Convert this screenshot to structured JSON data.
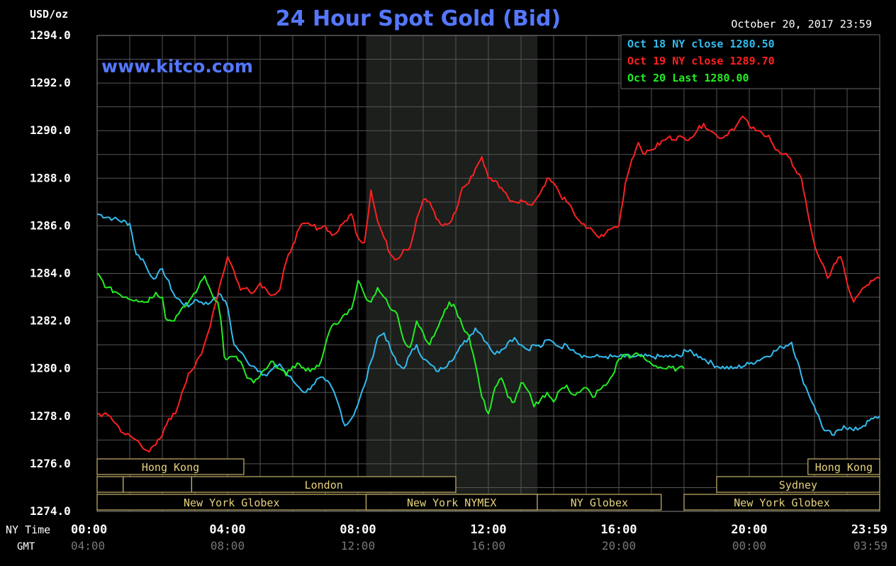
{
  "header": {
    "unit": "USD/oz",
    "title": "24 Hour Spot Gold (Bid)",
    "timestamp": "October 20, 2017 23:59",
    "watermark": "www.kitco.com"
  },
  "axis_labels": {
    "ny": "NY Time",
    "gmt": "GMT"
  },
  "legend": [
    {
      "text": "Oct 18 NY close 1280.50",
      "color": "#33bbee"
    },
    {
      "text": "Oct 19 NY close 1289.70",
      "color": "#ff2020"
    },
    {
      "text": "Oct 20 Last 1280.00",
      "color": "#22ee22"
    }
  ],
  "sessions": [
    {
      "label": "Hong Kong",
      "start": 0,
      "end": 4.5,
      "row": 0
    },
    {
      "label": "Hong Kong",
      "start": 21.8,
      "end": 24,
      "row": 0
    },
    {
      "label": "",
      "start": 0,
      "end": 0.8,
      "row": 1
    },
    {
      "label": "",
      "start": 0.8,
      "end": 2.9,
      "row": 1
    },
    {
      "label": "London",
      "start": 2.9,
      "end": 11.0,
      "row": 1
    },
    {
      "label": "Sydney",
      "start": 19.0,
      "end": 24,
      "row": 1
    },
    {
      "label": "New York Globex",
      "start": 0,
      "end": 8.25,
      "row": 2
    },
    {
      "label": "New York NYMEX",
      "start": 8.25,
      "end": 13.5,
      "row": 2
    },
    {
      "label": "NY Globex",
      "start": 13.5,
      "end": 17.3,
      "row": 2
    },
    {
      "label": "New York Globex",
      "start": 18.0,
      "end": 24,
      "row": 2
    }
  ],
  "chart_data": {
    "type": "line",
    "title": "24 Hour Spot Gold (Bid)",
    "ylabel": "USD/oz",
    "xlabel": "NY Time",
    "ylim": [
      1274.0,
      1294.0
    ],
    "xlim_hours": [
      0,
      24
    ],
    "y_ticks": [
      "1274.0",
      "1276.0",
      "1278.0",
      "1280.0",
      "1282.0",
      "1284.0",
      "1286.0",
      "1288.0",
      "1290.0",
      "1292.0",
      "1294.0"
    ],
    "x_ticks_ny": [
      "00:00",
      "04:00",
      "08:00",
      "12:00",
      "16:00",
      "20:00",
      "23:59"
    ],
    "x_ticks_gmt": [
      "04:00",
      "08:00",
      "12:00",
      "16:00",
      "20:00",
      "00:00",
      "03:59"
    ],
    "grid": true,
    "shaded_hours": [
      8.25,
      13.5
    ],
    "legend_position": "top-right",
    "series": [
      {
        "name": "Oct 18",
        "color": "#33bbee",
        "x": [
          0.0,
          0.5,
          1.0,
          1.2,
          1.4,
          1.6,
          1.8,
          2.0,
          2.4,
          2.8,
          3.0,
          3.2,
          3.4,
          3.6,
          3.8,
          4.0,
          4.2,
          4.4,
          4.6,
          4.8,
          5.0,
          5.2,
          5.4,
          5.6,
          5.8,
          6.0,
          6.2,
          6.4,
          6.6,
          6.8,
          7.0,
          7.2,
          7.4,
          7.6,
          7.8,
          8.0,
          8.2,
          8.4,
          8.6,
          8.8,
          9.0,
          9.2,
          9.4,
          9.6,
          9.8,
          10.0,
          10.2,
          10.4,
          10.6,
          10.8,
          11.0,
          11.2,
          11.4,
          11.6,
          11.8,
          12.0,
          12.2,
          12.4,
          12.6,
          12.8,
          13.0,
          13.2,
          13.4,
          13.6,
          13.8,
          14.0,
          14.2,
          14.4,
          14.6,
          14.8,
          15.0,
          15.2,
          15.4,
          15.6,
          15.8,
          16.0,
          16.5,
          17.0,
          17.5,
          17.9,
          18.0,
          18.5,
          19.0,
          19.5,
          20.0,
          20.5,
          21.0,
          21.3,
          21.6,
          21.8,
          22.0,
          22.3,
          22.6,
          22.9,
          23.2,
          23.5,
          23.8,
          24.0
        ],
        "y": [
          1286.5,
          1286.3,
          1286.1,
          1284.8,
          1284.6,
          1284.0,
          1283.8,
          1284.2,
          1283.0,
          1282.6,
          1282.9,
          1282.8,
          1282.7,
          1283.0,
          1283.1,
          1282.6,
          1281.0,
          1280.7,
          1280.3,
          1280.1,
          1279.9,
          1279.7,
          1280.0,
          1280.2,
          1279.8,
          1279.5,
          1279.2,
          1279.0,
          1279.3,
          1279.6,
          1279.5,
          1279.2,
          1278.5,
          1277.6,
          1277.9,
          1278.5,
          1279.3,
          1280.3,
          1281.3,
          1281.5,
          1280.8,
          1280.2,
          1280.0,
          1280.6,
          1281.0,
          1280.4,
          1280.2,
          1279.9,
          1280.0,
          1280.3,
          1280.6,
          1281.0,
          1281.3,
          1281.7,
          1281.4,
          1281.0,
          1280.6,
          1280.8,
          1281.1,
          1281.3,
          1281.0,
          1280.8,
          1281.0,
          1280.9,
          1281.2,
          1281.1,
          1280.9,
          1281.0,
          1280.8,
          1280.6,
          1280.5,
          1280.5,
          1280.5,
          1280.5,
          1280.5,
          1280.5,
          1280.5,
          1280.5,
          1280.5,
          1280.5,
          1280.8,
          1280.5,
          1280.1,
          1280.0,
          1280.2,
          1280.5,
          1280.9,
          1281.1,
          1279.7,
          1279.0,
          1278.4,
          1277.4,
          1277.2,
          1277.6,
          1277.4,
          1277.6,
          1277.9,
          1278.0
        ]
      },
      {
        "name": "Oct 19",
        "color": "#ff2020",
        "x": [
          0.0,
          0.4,
          0.8,
          1.2,
          1.6,
          1.8,
          2.0,
          2.2,
          2.4,
          2.6,
          2.8,
          3.0,
          3.2,
          3.4,
          3.6,
          3.8,
          4.0,
          4.2,
          4.4,
          4.6,
          4.8,
          5.0,
          5.2,
          5.4,
          5.6,
          5.8,
          6.0,
          6.2,
          6.4,
          6.6,
          6.8,
          7.0,
          7.2,
          7.4,
          7.6,
          7.8,
          8.0,
          8.2,
          8.4,
          8.6,
          8.8,
          9.0,
          9.2,
          9.4,
          9.6,
          9.8,
          10.0,
          10.2,
          10.4,
          10.6,
          10.8,
          11.0,
          11.2,
          11.4,
          11.6,
          11.8,
          12.0,
          12.2,
          12.4,
          12.6,
          12.8,
          13.0,
          13.2,
          13.4,
          13.6,
          13.8,
          14.0,
          14.2,
          14.4,
          14.6,
          14.8,
          15.0,
          15.2,
          15.4,
          15.6,
          15.8,
          16.0,
          16.2,
          16.4,
          16.6,
          16.8,
          17.0,
          17.5,
          18.0,
          18.2,
          18.4,
          18.6,
          18.8,
          19.0,
          19.2,
          19.4,
          19.6,
          19.8,
          20.0,
          20.2,
          20.4,
          20.6,
          20.8,
          21.0,
          21.2,
          21.4,
          21.6,
          21.8,
          22.0,
          22.2,
          22.4,
          22.6,
          22.8,
          23.0,
          23.2,
          23.4,
          23.6,
          23.8,
          24.0
        ],
        "y": [
          1278.1,
          1278.0,
          1277.3,
          1277.0,
          1276.5,
          1276.8,
          1277.2,
          1277.9,
          1278.1,
          1279.0,
          1279.8,
          1280.1,
          1280.6,
          1281.5,
          1282.6,
          1283.7,
          1284.7,
          1284.1,
          1283.3,
          1283.4,
          1283.2,
          1283.6,
          1283.3,
          1283.1,
          1283.3,
          1284.5,
          1285.2,
          1285.9,
          1286.1,
          1286.0,
          1285.9,
          1286.0,
          1285.6,
          1285.8,
          1286.2,
          1286.5,
          1285.5,
          1285.3,
          1287.5,
          1286.2,
          1285.5,
          1284.8,
          1284.6,
          1285.0,
          1285.1,
          1286.3,
          1287.1,
          1287.0,
          1286.3,
          1286.0,
          1286.1,
          1286.6,
          1287.6,
          1287.8,
          1288.4,
          1288.9,
          1288.0,
          1287.9,
          1287.6,
          1287.2,
          1287.0,
          1287.1,
          1286.9,
          1287.0,
          1287.4,
          1288.0,
          1287.8,
          1287.3,
          1287.0,
          1286.6,
          1286.2,
          1285.9,
          1285.8,
          1285.5,
          1285.7,
          1285.9,
          1286.0,
          1287.8,
          1288.8,
          1289.5,
          1289.0,
          1289.2,
          1289.7,
          1289.7,
          1289.7,
          1290.0,
          1290.3,
          1290.0,
          1289.8,
          1289.7,
          1290.0,
          1290.2,
          1290.6,
          1290.2,
          1290.0,
          1289.9,
          1289.8,
          1289.2,
          1289.0,
          1288.9,
          1288.4,
          1288.0,
          1286.5,
          1285.2,
          1284.5,
          1283.8,
          1284.4,
          1284.7,
          1283.6,
          1282.8,
          1283.2,
          1283.5,
          1283.7,
          1283.8
        ]
      },
      {
        "name": "Oct 20",
        "color": "#22ee22",
        "x": [
          0.0,
          0.3,
          0.6,
          0.9,
          1.2,
          1.5,
          1.8,
          2.0,
          2.1,
          2.3,
          2.5,
          2.7,
          2.9,
          3.1,
          3.3,
          3.5,
          3.7,
          3.8,
          3.9,
          4.0,
          4.2,
          4.4,
          4.6,
          4.8,
          5.0,
          5.2,
          5.4,
          5.6,
          5.8,
          6.0,
          6.2,
          6.4,
          6.6,
          6.8,
          7.0,
          7.2,
          7.4,
          7.6,
          7.8,
          8.0,
          8.2,
          8.4,
          8.6,
          8.8,
          9.0,
          9.2,
          9.4,
          9.6,
          9.8,
          10.0,
          10.2,
          10.4,
          10.6,
          10.8,
          11.0,
          11.2,
          11.4,
          11.6,
          11.8,
          12.0,
          12.2,
          12.4,
          12.6,
          12.8,
          13.0,
          13.2,
          13.4,
          13.6,
          13.8,
          14.0,
          14.2,
          14.4,
          14.6,
          14.8,
          15.0,
          15.2,
          15.4,
          15.6,
          15.8,
          16.0,
          16.2,
          16.4,
          16.6,
          16.8,
          17.0,
          17.4,
          17.8,
          18.0
        ],
        "y": [
          1284.0,
          1283.4,
          1283.2,
          1283.0,
          1282.9,
          1282.8,
          1283.2,
          1283.0,
          1282.1,
          1282.0,
          1282.3,
          1282.6,
          1283.0,
          1283.4,
          1283.9,
          1283.2,
          1282.8,
          1282.0,
          1280.5,
          1280.4,
          1280.5,
          1280.3,
          1279.6,
          1279.4,
          1279.7,
          1280.0,
          1280.3,
          1280.0,
          1279.7,
          1280.1,
          1280.2,
          1279.9,
          1280.0,
          1280.1,
          1281.0,
          1281.8,
          1281.9,
          1282.3,
          1282.5,
          1283.7,
          1283.1,
          1282.8,
          1283.4,
          1283.0,
          1282.5,
          1282.3,
          1281.2,
          1280.9,
          1282.0,
          1281.5,
          1281.0,
          1281.6,
          1282.2,
          1282.8,
          1282.5,
          1281.8,
          1281.4,
          1280.2,
          1278.8,
          1278.1,
          1279.2,
          1279.6,
          1278.8,
          1278.6,
          1279.4,
          1279.1,
          1278.4,
          1278.7,
          1279.0,
          1278.6,
          1279.1,
          1279.3,
          1278.9,
          1279.0,
          1279.2,
          1278.8,
          1279.1,
          1279.3,
          1279.7,
          1280.4,
          1280.6,
          1280.5,
          1280.6,
          1280.4,
          1280.2,
          1280.0,
          1280.0,
          1280.0
        ]
      }
    ]
  }
}
